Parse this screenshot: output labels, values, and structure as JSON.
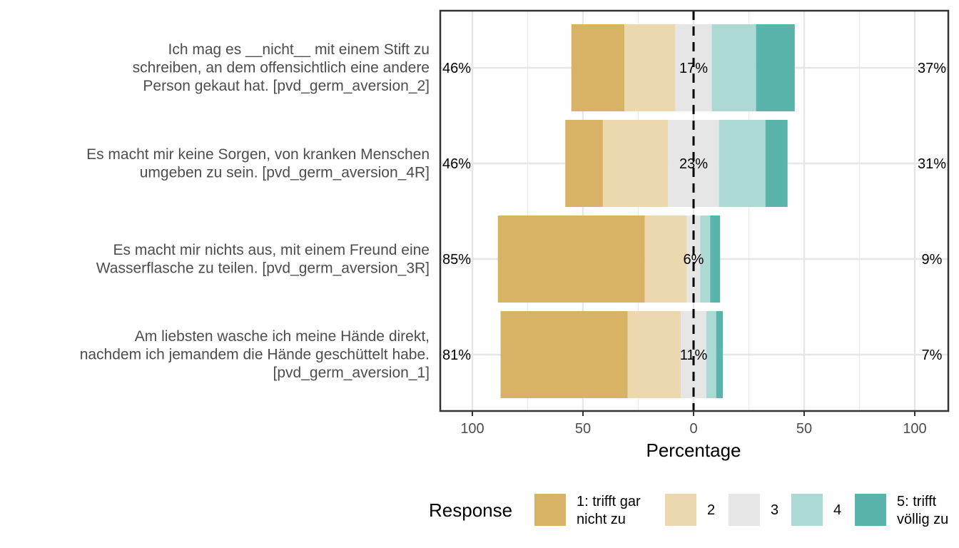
{
  "chart_data": {
    "type": "bar",
    "subtype": "diverging-stacked-likert",
    "orientation": "horizontal",
    "xlabel": "Percentage",
    "xlim": [
      -115,
      115
    ],
    "xticks": [
      -100,
      -50,
      0,
      50,
      100
    ],
    "xtick_labels": [
      "100",
      "50",
      "0",
      "50",
      "100"
    ],
    "grid": true,
    "legend": {
      "title": "Response",
      "position": "bottom",
      "entries": [
        {
          "lines": [
            "1: trifft gar",
            "nicht zu"
          ],
          "color": "#D8B365"
        },
        {
          "lines": [
            "2"
          ],
          "color": "#EBD8AE"
        },
        {
          "lines": [
            "3"
          ],
          "color": "#E6E6E6"
        },
        {
          "lines": [
            "4"
          ],
          "color": "#ACD9D3"
        },
        {
          "lines": [
            "5: trifft",
            "völlig zu"
          ],
          "color": "#5AB4AC"
        }
      ]
    },
    "items": [
      {
        "label_lines": [
          "Ich mag es __nicht__ mit einem Stift zu",
          "schreiben, an dem offensichtlich eine andere",
          "Person gekaut hat. [pvd_germ_aversion_2]"
        ],
        "values": [
          24,
          23,
          16.5,
          20,
          17.5
        ],
        "left_label": "46%",
        "center_label": "17%",
        "right_label": "37%"
      },
      {
        "label_lines": [
          "Es macht mir keine Sorgen, von kranken Menschen",
          "umgeben zu sein. [pvd_germ_aversion_4R]"
        ],
        "values": [
          17,
          29.5,
          23,
          21,
          10
        ],
        "left_label": "46%",
        "center_label": "23%",
        "right_label": "31%"
      },
      {
        "label_lines": [
          "Es macht mir nichts aus, mit einem Freund eine",
          "Wasserflasche zu teilen. [pvd_germ_aversion_3R]"
        ],
        "values": [
          66.5,
          19,
          6,
          4.5,
          4.5
        ],
        "left_label": "85%",
        "center_label": "6%",
        "right_label": "9%"
      },
      {
        "label_lines": [
          "Am liebsten wasche ich meine Hände direkt,",
          "nachdem ich jemandem die Hände geschüttelt habe.",
          "[pvd_germ_aversion_1]"
        ],
        "values": [
          57.5,
          24,
          11.5,
          4.5,
          3
        ],
        "left_label": "81%",
        "center_label": "11%",
        "right_label": "7%"
      }
    ]
  }
}
